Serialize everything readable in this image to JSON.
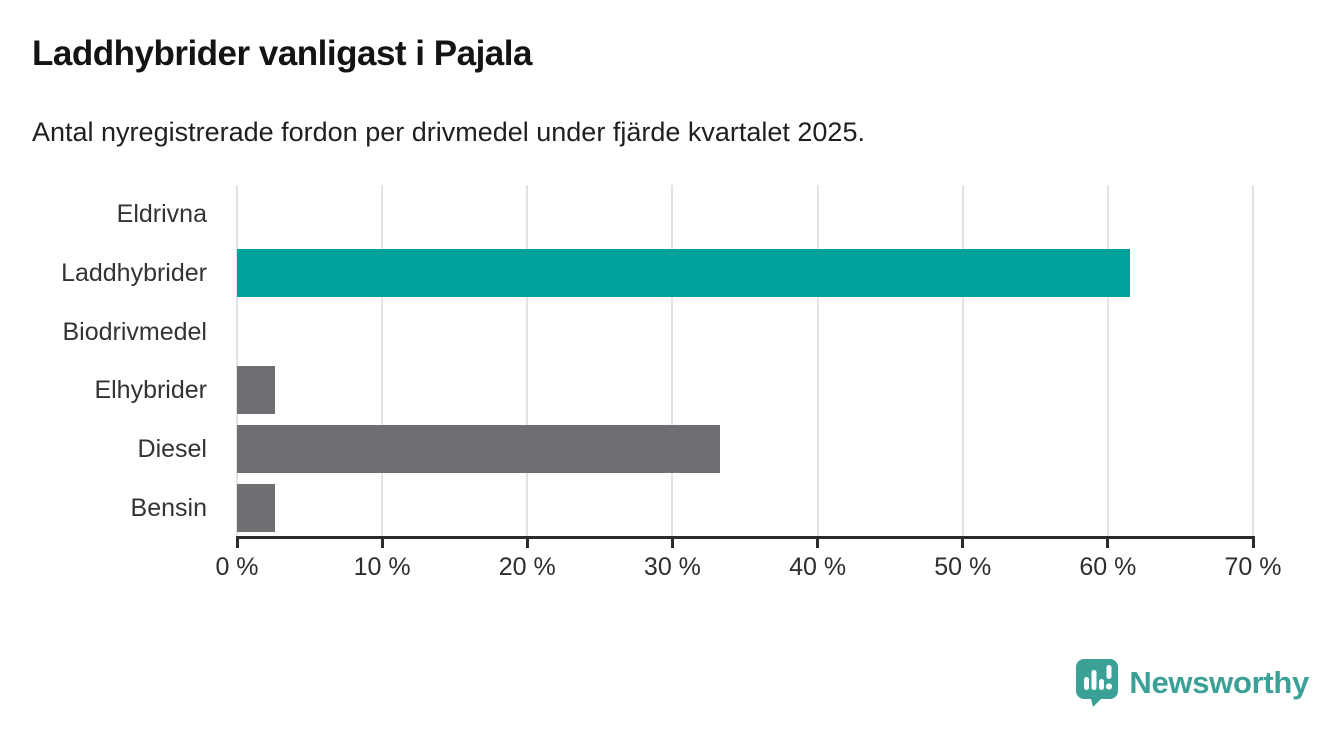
{
  "title": "Laddhybrider vanligast i Pajala",
  "subtitle": "Antal nyregistrerade fordon per drivmedel under fjärde kvartalet 2025.",
  "chart_data": {
    "type": "bar",
    "orientation": "horizontal",
    "title": "Laddhybrider vanligast i Pajala",
    "subtitle": "Antal nyregistrerade fordon per drivmedel under fjärde kvartalet 2025.",
    "categories": [
      "Eldrivna",
      "Laddhybrider",
      "Biodrivmedel",
      "Elhybrider",
      "Diesel",
      "Bensin"
    ],
    "values": [
      0,
      61.5,
      0,
      2.6,
      33.3,
      2.6
    ],
    "unit": "%",
    "xlim": [
      0,
      70
    ],
    "x_ticks": [
      0,
      10,
      20,
      30,
      40,
      50,
      60,
      70
    ],
    "x_tick_labels": [
      "0 %",
      "10 %",
      "20 %",
      "30 %",
      "40 %",
      "50 %",
      "60 %",
      "70 %"
    ],
    "grid": true,
    "legend": "none",
    "highlight_category": "Laddhybrider",
    "colors": {
      "highlight": "#00a29b",
      "default": "#6e6e73",
      "gridline": "#e3e3e3",
      "axis": "#2b2b2b",
      "label": "#333333"
    }
  },
  "branding": {
    "name": "Newsworthy",
    "color": "#3ba197",
    "icon": "newsworthy-pin-barchart-icon"
  }
}
